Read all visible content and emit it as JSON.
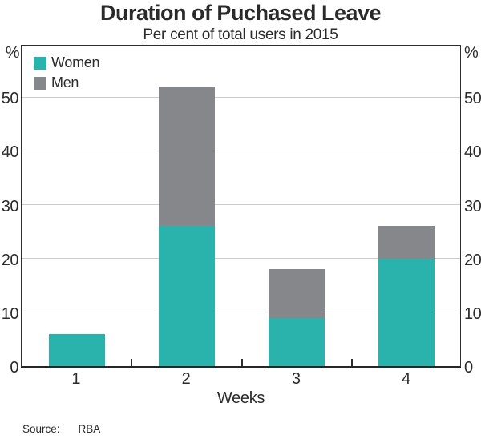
{
  "header": {
    "title": "Duration of Puchased Leave",
    "subtitle": "Per cent of total users in 2015"
  },
  "chart_data": {
    "type": "bar",
    "stacked": true,
    "title": "Duration of Puchased Leave",
    "subtitle": "Per cent of total users in 2015",
    "categories": [
      "1",
      "2",
      "3",
      "4"
    ],
    "series": [
      {
        "name": "Women",
        "color": "#2ab3ac",
        "values": [
          6,
          26,
          9,
          20
        ]
      },
      {
        "name": "Men",
        "color": "#85878a",
        "values": [
          0,
          26,
          9,
          6
        ]
      }
    ],
    "totals": [
      6,
      52,
      18,
      26
    ],
    "xlabel": "Weeks",
    "ylabel_left": "%",
    "ylabel_right": "%",
    "ylim": [
      0,
      60
    ],
    "yticks": [
      0,
      10,
      20,
      30,
      40,
      50
    ],
    "grid": true,
    "legend_position": "top-left"
  },
  "footer": {
    "source_label": "Source:",
    "source_value": "RBA"
  },
  "colors": {
    "women": "#2ab3ac",
    "men": "#85878a",
    "grid": "#cccccc",
    "axis": "#2e2e2e",
    "text": "#2b2b2b"
  }
}
